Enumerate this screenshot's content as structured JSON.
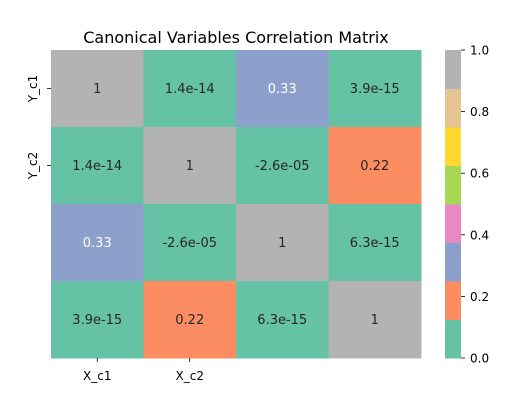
{
  "chart_data": {
    "type": "heatmap",
    "title": "Canonical Variables Correlation Matrix",
    "x_tick_labels": [
      "X_c1",
      "X_c2",
      "",
      ""
    ],
    "y_tick_labels": [
      "Y_c1",
      "Y_c2",
      "",
      ""
    ],
    "values": [
      [
        1,
        1.4e-14,
        0.33,
        3.9e-15
      ],
      [
        1.4e-14,
        1,
        -2.6e-05,
        0.22
      ],
      [
        0.33,
        -2.6e-05,
        1,
        6.3e-15
      ],
      [
        3.9e-15,
        0.22,
        6.3e-15,
        1
      ]
    ],
    "annotations": [
      [
        "1",
        "1.4e-14",
        "0.33",
        "3.9e-15"
      ],
      [
        "1.4e-14",
        "1",
        "-2.6e-05",
        "0.22"
      ],
      [
        "0.33",
        "-2.6e-05",
        "1",
        "6.3e-15"
      ],
      [
        "3.9e-15",
        "0.22",
        "6.3e-15",
        "1"
      ]
    ],
    "colormap": "Set2",
    "colormap_colors": [
      "#66c2a5",
      "#fc8d62",
      "#8da0cb",
      "#e78ac3",
      "#a6d854",
      "#ffd92f",
      "#e5c494",
      "#b3b3b3"
    ],
    "vmin": 0.0,
    "vmax": 1.0,
    "colorbar_ticks": [
      0.0,
      0.2,
      0.4,
      0.6,
      0.8,
      1.0
    ],
    "colorbar_tick_labels": [
      "0.0",
      "0.2",
      "0.4",
      "0.6",
      "0.8",
      "1.0"
    ]
  }
}
